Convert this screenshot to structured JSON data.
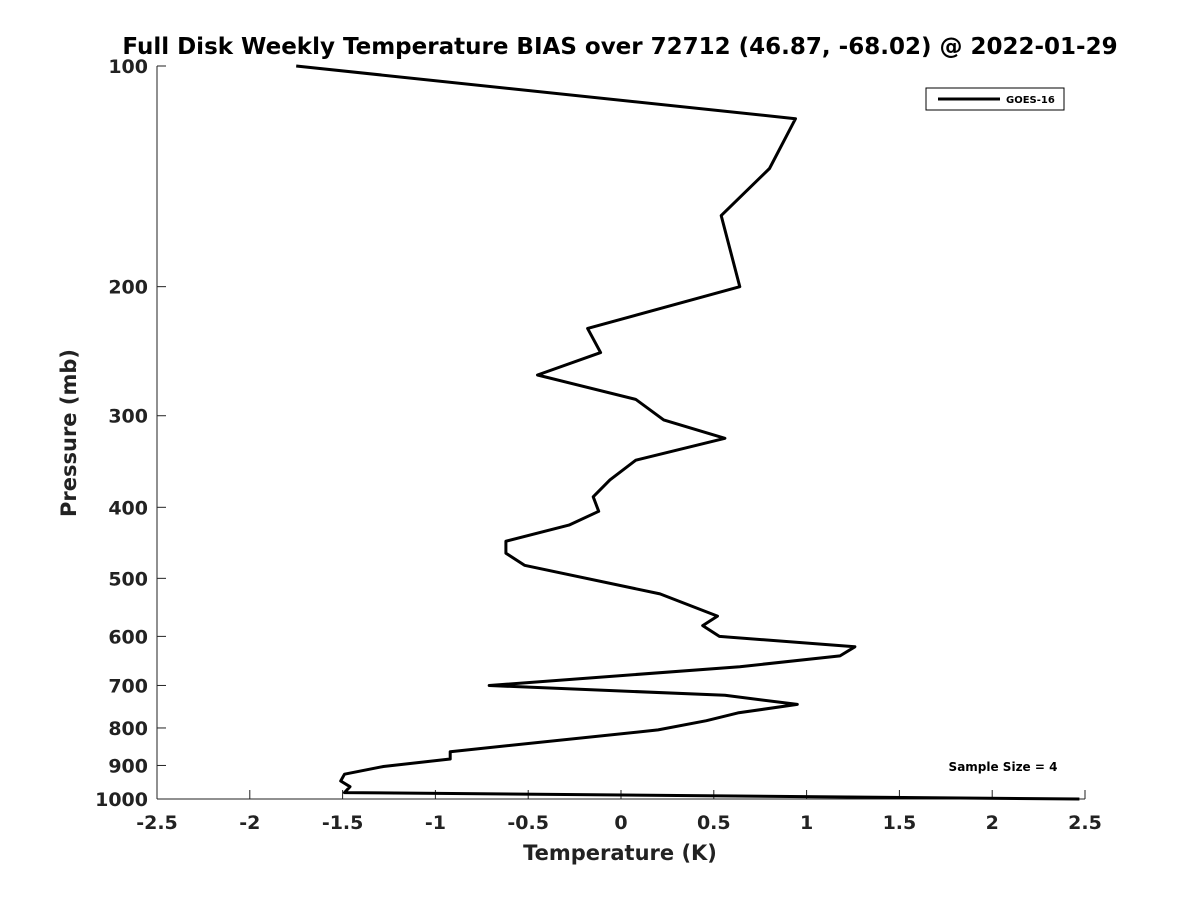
{
  "chart_data": {
    "type": "line",
    "title": "Full Disk Weekly Temperature BIAS over 72712 (46.87, -68.02) @ 2022-01-29",
    "xlabel": "Temperature (K)",
    "ylabel": "Pressure (mb)",
    "xlim": [
      -2.5,
      2.5
    ],
    "ylim": [
      1000,
      100
    ],
    "yscale": "log",
    "y_reversed": true,
    "x_ticks": [
      -2.5,
      -2,
      -1.5,
      -1,
      -0.5,
      0,
      0.5,
      1,
      1.5,
      2,
      2.5
    ],
    "x_tick_labels": [
      "-2.5",
      "-2",
      "-1.5",
      "-1",
      "-0.5",
      "0",
      "0.5",
      "1",
      "1.5",
      "2",
      "2.5"
    ],
    "y_ticks": [
      100,
      200,
      300,
      400,
      500,
      600,
      700,
      800,
      900,
      1000
    ],
    "y_tick_labels": [
      "100",
      "200",
      "300",
      "400",
      "500",
      "600",
      "700",
      "800",
      "900",
      "1000"
    ],
    "grid": false,
    "legend_position": "top-right",
    "series": [
      {
        "name": "GOES-16",
        "color": "#000000",
        "points": [
          {
            "x": -1.75,
            "y": 100
          },
          {
            "x": 0.94,
            "y": 118
          },
          {
            "x": 0.8,
            "y": 138
          },
          {
            "x": 0.54,
            "y": 160
          },
          {
            "x": 0.64,
            "y": 200
          },
          {
            "x": -0.18,
            "y": 228
          },
          {
            "x": -0.11,
            "y": 246
          },
          {
            "x": -0.45,
            "y": 264
          },
          {
            "x": 0.08,
            "y": 285
          },
          {
            "x": 0.23,
            "y": 304
          },
          {
            "x": 0.56,
            "y": 322
          },
          {
            "x": 0.08,
            "y": 345
          },
          {
            "x": -0.06,
            "y": 367
          },
          {
            "x": -0.15,
            "y": 387
          },
          {
            "x": -0.12,
            "y": 405
          },
          {
            "x": -0.28,
            "y": 423
          },
          {
            "x": -0.62,
            "y": 445
          },
          {
            "x": -0.62,
            "y": 462
          },
          {
            "x": -0.52,
            "y": 480
          },
          {
            "x": 0.21,
            "y": 525
          },
          {
            "x": 0.52,
            "y": 563
          },
          {
            "x": 0.44,
            "y": 580
          },
          {
            "x": 0.53,
            "y": 600
          },
          {
            "x": 1.26,
            "y": 620
          },
          {
            "x": 1.18,
            "y": 638
          },
          {
            "x": 0.64,
            "y": 660
          },
          {
            "x": -0.71,
            "y": 700
          },
          {
            "x": 0.56,
            "y": 722
          },
          {
            "x": 0.95,
            "y": 743
          },
          {
            "x": 0.63,
            "y": 763
          },
          {
            "x": 0.46,
            "y": 782
          },
          {
            "x": 0.2,
            "y": 805
          },
          {
            "x": -0.92,
            "y": 862
          },
          {
            "x": -0.92,
            "y": 882
          },
          {
            "x": -1.28,
            "y": 903
          },
          {
            "x": -1.49,
            "y": 925
          },
          {
            "x": -1.51,
            "y": 945
          },
          {
            "x": -1.46,
            "y": 962
          },
          {
            "x": -1.49,
            "y": 980
          },
          {
            "x": 2.47,
            "y": 1000
          }
        ]
      }
    ],
    "annotations": [
      "Sample Size = 4"
    ]
  }
}
